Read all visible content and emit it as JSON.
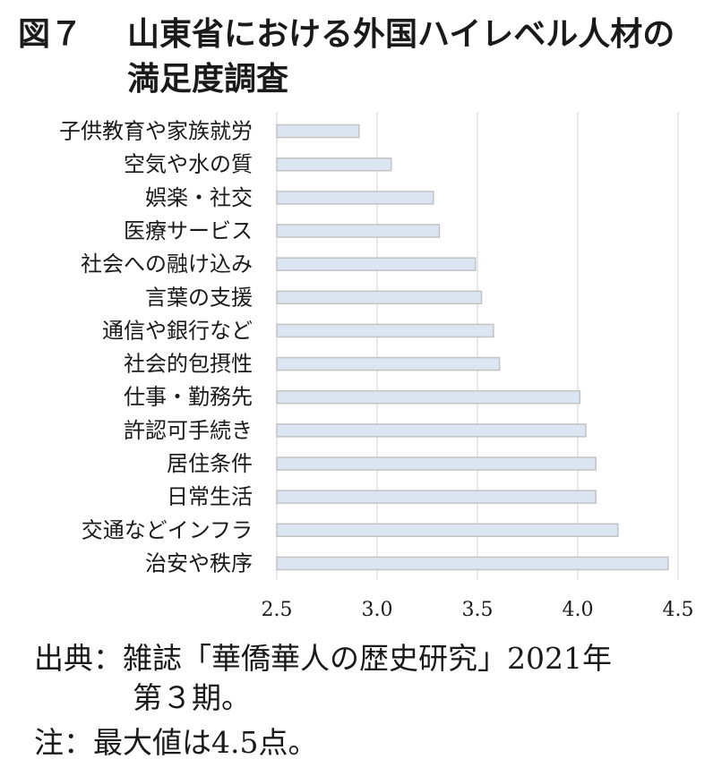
{
  "title": {
    "figure_label": "図７",
    "line1": "山東省における外国ハイレベル人材の",
    "line2": "満足度調査"
  },
  "footer": {
    "source_line1": "出典：雑誌「華僑華人の歴史研究」2021年",
    "source_line2": "第３期。",
    "note": "注：最大値は4.5点。"
  },
  "colors": {
    "bar_fill": "#dce6f2",
    "bar_stroke": "#c3c3c3",
    "grid": "#d9d9d9"
  },
  "chart_data": {
    "type": "bar",
    "orientation": "horizontal",
    "categories": [
      "子供教育や家族就労",
      "空気や水の質",
      "娯楽・社交",
      "医療サービス",
      "社会への融け込み",
      "言葉の支援",
      "通信や銀行など",
      "社会的包摂性",
      "仕事・勤務先",
      "許認可手続き",
      "居住条件",
      "日常生活",
      "交通などインフラ",
      "治安や秩序"
    ],
    "values": [
      2.91,
      3.07,
      3.28,
      3.31,
      3.49,
      3.52,
      3.58,
      3.61,
      4.01,
      4.04,
      4.09,
      4.09,
      4.2,
      4.45
    ],
    "xlim": [
      2.5,
      4.5
    ],
    "xticks": [
      "2.5",
      "3.0",
      "3.5",
      "4.0",
      "4.5"
    ],
    "grid": true,
    "legend": "none"
  }
}
